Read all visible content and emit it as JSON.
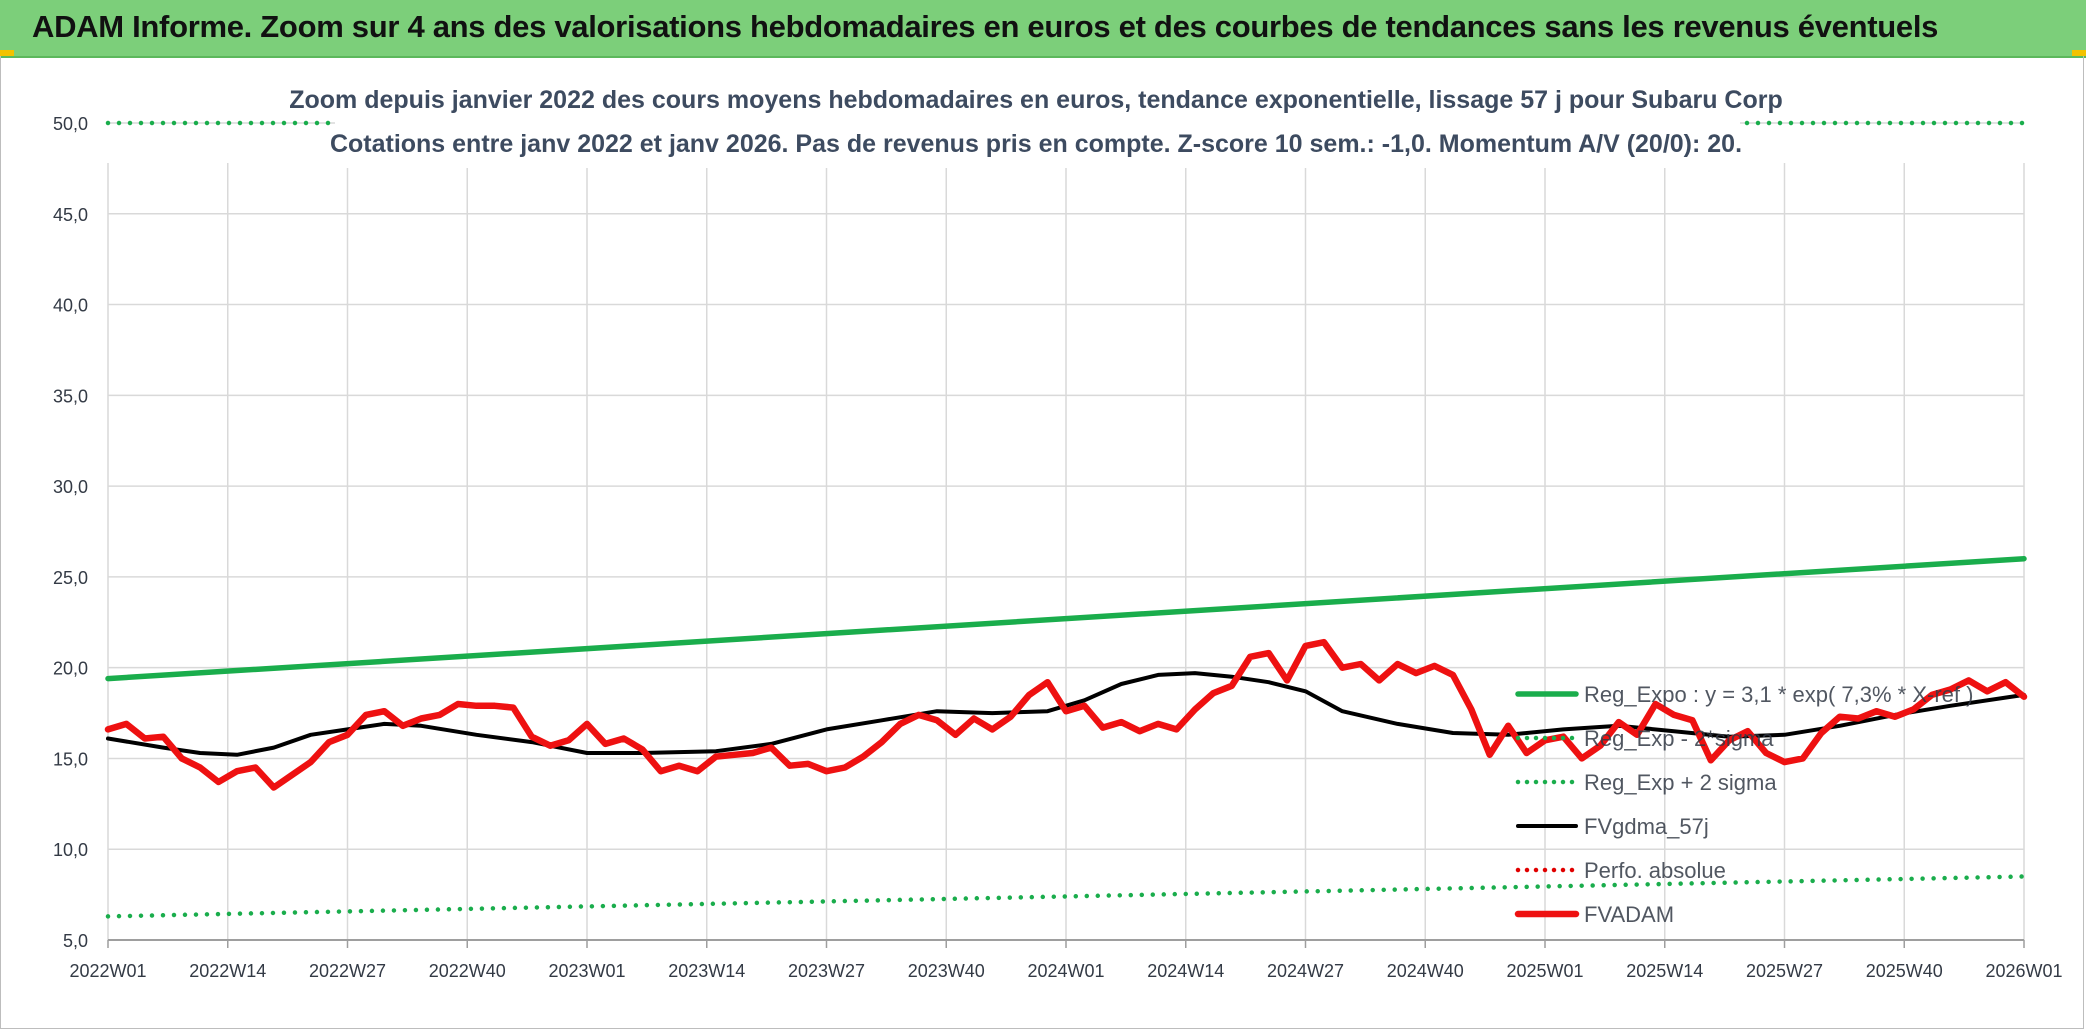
{
  "header": {
    "title": "ADAM Informe. Zoom sur 4 ans des valorisations hebdomadaires en euros et des courbes de tendances sans les revenus éventuels"
  },
  "chart_data": {
    "type": "line",
    "title_line1": "Zoom depuis janvier 2022 des cours moyens hebdomadaires en euros, tendance exponentielle, lissage 57 j pour Subaru Corp",
    "title_line2": "Cotations entre janv 2022 et janv 2026. Pas de revenus pris en compte. Z-score 10 sem.: -1,0. Momentum A/V (20/0): 20.",
    "ylim": [
      5,
      50
    ],
    "yticks": [
      "5,0",
      "10,0",
      "15,0",
      "20,0",
      "25,0",
      "30,0",
      "35,0",
      "40,0",
      "45,0",
      "50,0"
    ],
    "yticks_values": [
      5,
      10,
      15,
      20,
      25,
      30,
      35,
      40,
      45,
      50
    ],
    "x_count": 209,
    "xticks": [
      {
        "i": 0,
        "label": "2022W01"
      },
      {
        "i": 13,
        "label": "2022W14"
      },
      {
        "i": 26,
        "label": "2022W27"
      },
      {
        "i": 39,
        "label": "2022W40"
      },
      {
        "i": 52,
        "label": "2023W01"
      },
      {
        "i": 65,
        "label": "2023W14"
      },
      {
        "i": 78,
        "label": "2023W27"
      },
      {
        "i": 91,
        "label": "2023W40"
      },
      {
        "i": 104,
        "label": "2024W01"
      },
      {
        "i": 117,
        "label": "2024W14"
      },
      {
        "i": 130,
        "label": "2024W27"
      },
      {
        "i": 143,
        "label": "2024W40"
      },
      {
        "i": 156,
        "label": "2025W01"
      },
      {
        "i": 169,
        "label": "2025W14"
      },
      {
        "i": 182,
        "label": "2025W27"
      },
      {
        "i": 195,
        "label": "2025W40"
      },
      {
        "i": 208,
        "label": "2026W01"
      }
    ],
    "grid": true,
    "legend_position": "right",
    "series": [
      {
        "name": "Reg_Expo : y = 3,1 * exp( 7,3% *  X-ref )",
        "color": "#1aad4c",
        "style": "solid-thick",
        "anchors": [
          [
            0,
            19.4
          ],
          [
            208,
            26.0
          ]
        ]
      },
      {
        "name": "Reg_Exp - 2*sigma",
        "color": "#1aad4c",
        "style": "dotted",
        "anchors": [
          [
            0,
            6.3
          ],
          [
            208,
            8.5
          ]
        ]
      },
      {
        "name": "Reg_Exp + 2 sigma",
        "color": "#1aad4c",
        "style": "dotted",
        "anchors": [
          [
            0,
            50.0
          ],
          [
            208,
            50.0
          ]
        ]
      },
      {
        "name": "FVgdma_57j",
        "color": "#000000",
        "style": "solid",
        "anchors": [
          [
            0,
            16.1
          ],
          [
            6,
            15.6
          ],
          [
            10,
            15.3
          ],
          [
            14,
            15.2
          ],
          [
            18,
            15.6
          ],
          [
            22,
            16.3
          ],
          [
            26,
            16.6
          ],
          [
            30,
            16.9
          ],
          [
            34,
            16.8
          ],
          [
            40,
            16.3
          ],
          [
            46,
            15.9
          ],
          [
            52,
            15.3
          ],
          [
            58,
            15.3
          ],
          [
            66,
            15.4
          ],
          [
            72,
            15.8
          ],
          [
            78,
            16.6
          ],
          [
            84,
            17.1
          ],
          [
            90,
            17.6
          ],
          [
            96,
            17.5
          ],
          [
            102,
            17.6
          ],
          [
            106,
            18.2
          ],
          [
            110,
            19.1
          ],
          [
            114,
            19.6
          ],
          [
            118,
            19.7
          ],
          [
            122,
            19.5
          ],
          [
            126,
            19.2
          ],
          [
            130,
            18.7
          ],
          [
            134,
            17.6
          ],
          [
            140,
            16.9
          ],
          [
            146,
            16.4
          ],
          [
            152,
            16.3
          ],
          [
            158,
            16.6
          ],
          [
            164,
            16.8
          ],
          [
            170,
            16.5
          ],
          [
            176,
            16.2
          ],
          [
            182,
            16.3
          ],
          [
            188,
            16.8
          ],
          [
            194,
            17.4
          ],
          [
            200,
            17.9
          ],
          [
            208,
            18.5
          ]
        ]
      },
      {
        "name": "Perfo. absolue",
        "color": "#e00000",
        "style": "dotted",
        "anchors": []
      },
      {
        "name": "FVADAM",
        "color": "#ee1111",
        "style": "solid-thick",
        "anchors": [
          [
            0,
            16.6
          ],
          [
            2,
            16.9
          ],
          [
            4,
            16.1
          ],
          [
            6,
            16.2
          ],
          [
            8,
            15.0
          ],
          [
            10,
            14.5
          ],
          [
            12,
            13.7
          ],
          [
            14,
            14.3
          ],
          [
            16,
            14.5
          ],
          [
            18,
            13.4
          ],
          [
            20,
            14.1
          ],
          [
            22,
            14.8
          ],
          [
            24,
            15.9
          ],
          [
            26,
            16.3
          ],
          [
            28,
            17.4
          ],
          [
            30,
            17.6
          ],
          [
            32,
            16.8
          ],
          [
            34,
            17.2
          ],
          [
            36,
            17.4
          ],
          [
            38,
            18.0
          ],
          [
            40,
            17.9
          ],
          [
            42,
            17.9
          ],
          [
            44,
            17.8
          ],
          [
            46,
            16.2
          ],
          [
            48,
            15.7
          ],
          [
            50,
            16.0
          ],
          [
            52,
            16.9
          ],
          [
            54,
            15.8
          ],
          [
            56,
            16.1
          ],
          [
            58,
            15.5
          ],
          [
            60,
            14.3
          ],
          [
            62,
            14.6
          ],
          [
            64,
            14.3
          ],
          [
            66,
            15.1
          ],
          [
            68,
            15.2
          ],
          [
            70,
            15.3
          ],
          [
            72,
            15.6
          ],
          [
            74,
            14.6
          ],
          [
            76,
            14.7
          ],
          [
            78,
            14.3
          ],
          [
            80,
            14.5
          ],
          [
            82,
            15.1
          ],
          [
            84,
            15.9
          ],
          [
            86,
            16.9
          ],
          [
            88,
            17.4
          ],
          [
            90,
            17.1
          ],
          [
            92,
            16.3
          ],
          [
            94,
            17.2
          ],
          [
            96,
            16.6
          ],
          [
            98,
            17.3
          ],
          [
            100,
            18.5
          ],
          [
            102,
            19.2
          ],
          [
            104,
            17.6
          ],
          [
            106,
            17.9
          ],
          [
            108,
            16.7
          ],
          [
            110,
            17.0
          ],
          [
            112,
            16.5
          ],
          [
            114,
            16.9
          ],
          [
            116,
            16.6
          ],
          [
            118,
            17.7
          ],
          [
            120,
            18.6
          ],
          [
            122,
            19.0
          ],
          [
            124,
            20.6
          ],
          [
            126,
            20.8
          ],
          [
            128,
            19.3
          ],
          [
            130,
            21.2
          ],
          [
            132,
            21.4
          ],
          [
            134,
            20.0
          ],
          [
            136,
            20.2
          ],
          [
            138,
            19.3
          ],
          [
            140,
            20.2
          ],
          [
            142,
            19.7
          ],
          [
            144,
            20.1
          ],
          [
            146,
            19.6
          ],
          [
            148,
            17.7
          ],
          [
            150,
            15.2
          ],
          [
            152,
            16.8
          ],
          [
            154,
            15.3
          ],
          [
            156,
            16.0
          ],
          [
            158,
            16.2
          ],
          [
            160,
            15.0
          ],
          [
            162,
            15.7
          ],
          [
            164,
            17.0
          ],
          [
            166,
            16.3
          ],
          [
            168,
            18.0
          ],
          [
            170,
            17.4
          ],
          [
            172,
            17.1
          ],
          [
            174,
            14.9
          ],
          [
            176,
            16.0
          ],
          [
            178,
            16.5
          ],
          [
            180,
            15.3
          ],
          [
            182,
            14.8
          ],
          [
            184,
            15.0
          ],
          [
            186,
            16.4
          ],
          [
            188,
            17.3
          ],
          [
            190,
            17.2
          ],
          [
            192,
            17.6
          ],
          [
            194,
            17.3
          ],
          [
            196,
            17.7
          ],
          [
            198,
            18.5
          ],
          [
            200,
            18.8
          ],
          [
            202,
            19.3
          ],
          [
            204,
            18.7
          ],
          [
            206,
            19.2
          ],
          [
            208,
            18.4
          ]
        ]
      }
    ]
  }
}
